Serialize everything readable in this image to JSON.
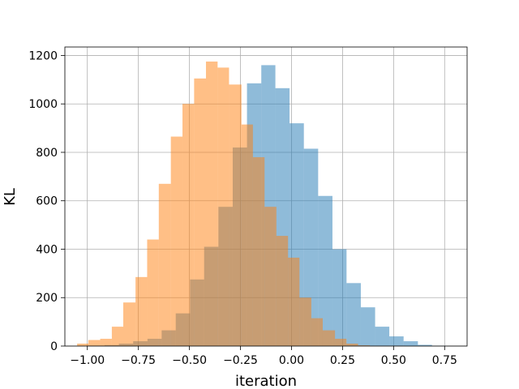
{
  "chart_data": {
    "type": "histogram",
    "title": "",
    "xlabel": "iteration",
    "ylabel": "KL",
    "xlim": [
      -1.11,
      0.86
    ],
    "ylim": [
      0,
      1235
    ],
    "grid": true,
    "xticks": [
      -1.0,
      -0.75,
      -0.5,
      -0.25,
      0.0,
      0.25,
      0.5,
      0.75
    ],
    "xtick_labels": [
      "−1.00",
      "−0.75",
      "−0.50",
      "−0.25",
      "0.00",
      "0.25",
      "0.50",
      "0.75"
    ],
    "yticks": [
      0,
      200,
      400,
      600,
      800,
      1000,
      1200
    ],
    "ytick_labels": [
      "0",
      "200",
      "400",
      "600",
      "800",
      "1000",
      "1200"
    ],
    "series": [
      {
        "color": "#1f77b4",
        "alpha": 0.5,
        "bin_edges": [
          -1.005,
          -0.9155,
          -0.8455,
          -0.7755,
          -0.7055,
          -0.636,
          -0.567,
          -0.497,
          -0.428,
          -0.358,
          -0.288,
          -0.218,
          -0.148,
          -0.079,
          -0.0095,
          0.0605,
          0.1305,
          0.2005,
          0.2695,
          0.3395,
          0.4095,
          0.479,
          0.549,
          0.619,
          0.688,
          0.758
        ],
        "counts": [
          2,
          4,
          10,
          20,
          30,
          65,
          135,
          275,
          410,
          575,
          820,
          1085,
          1160,
          1065,
          920,
          815,
          620,
          400,
          260,
          160,
          80,
          40,
          20,
          5,
          1
        ]
      },
      {
        "color": "#ff7f0e",
        "alpha": 0.5,
        "bin_edges": [
          -1.05,
          -0.995,
          -0.937,
          -0.88,
          -0.824,
          -0.764,
          -0.707,
          -0.65,
          -0.591,
          -0.534,
          -0.477,
          -0.419,
          -0.362,
          -0.306,
          -0.245,
          -0.189,
          -0.132,
          -0.074,
          -0.017,
          0.039,
          0.097,
          0.153,
          0.213,
          0.269,
          0.326,
          0.384,
          0.44,
          0.497,
          0.556
        ],
        "counts": [
          10,
          25,
          30,
          80,
          180,
          285,
          440,
          670,
          865,
          1000,
          1105,
          1175,
          1150,
          1080,
          915,
          780,
          575,
          455,
          365,
          200,
          115,
          65,
          30,
          10,
          3,
          1,
          1,
          1
        ]
      }
    ]
  }
}
